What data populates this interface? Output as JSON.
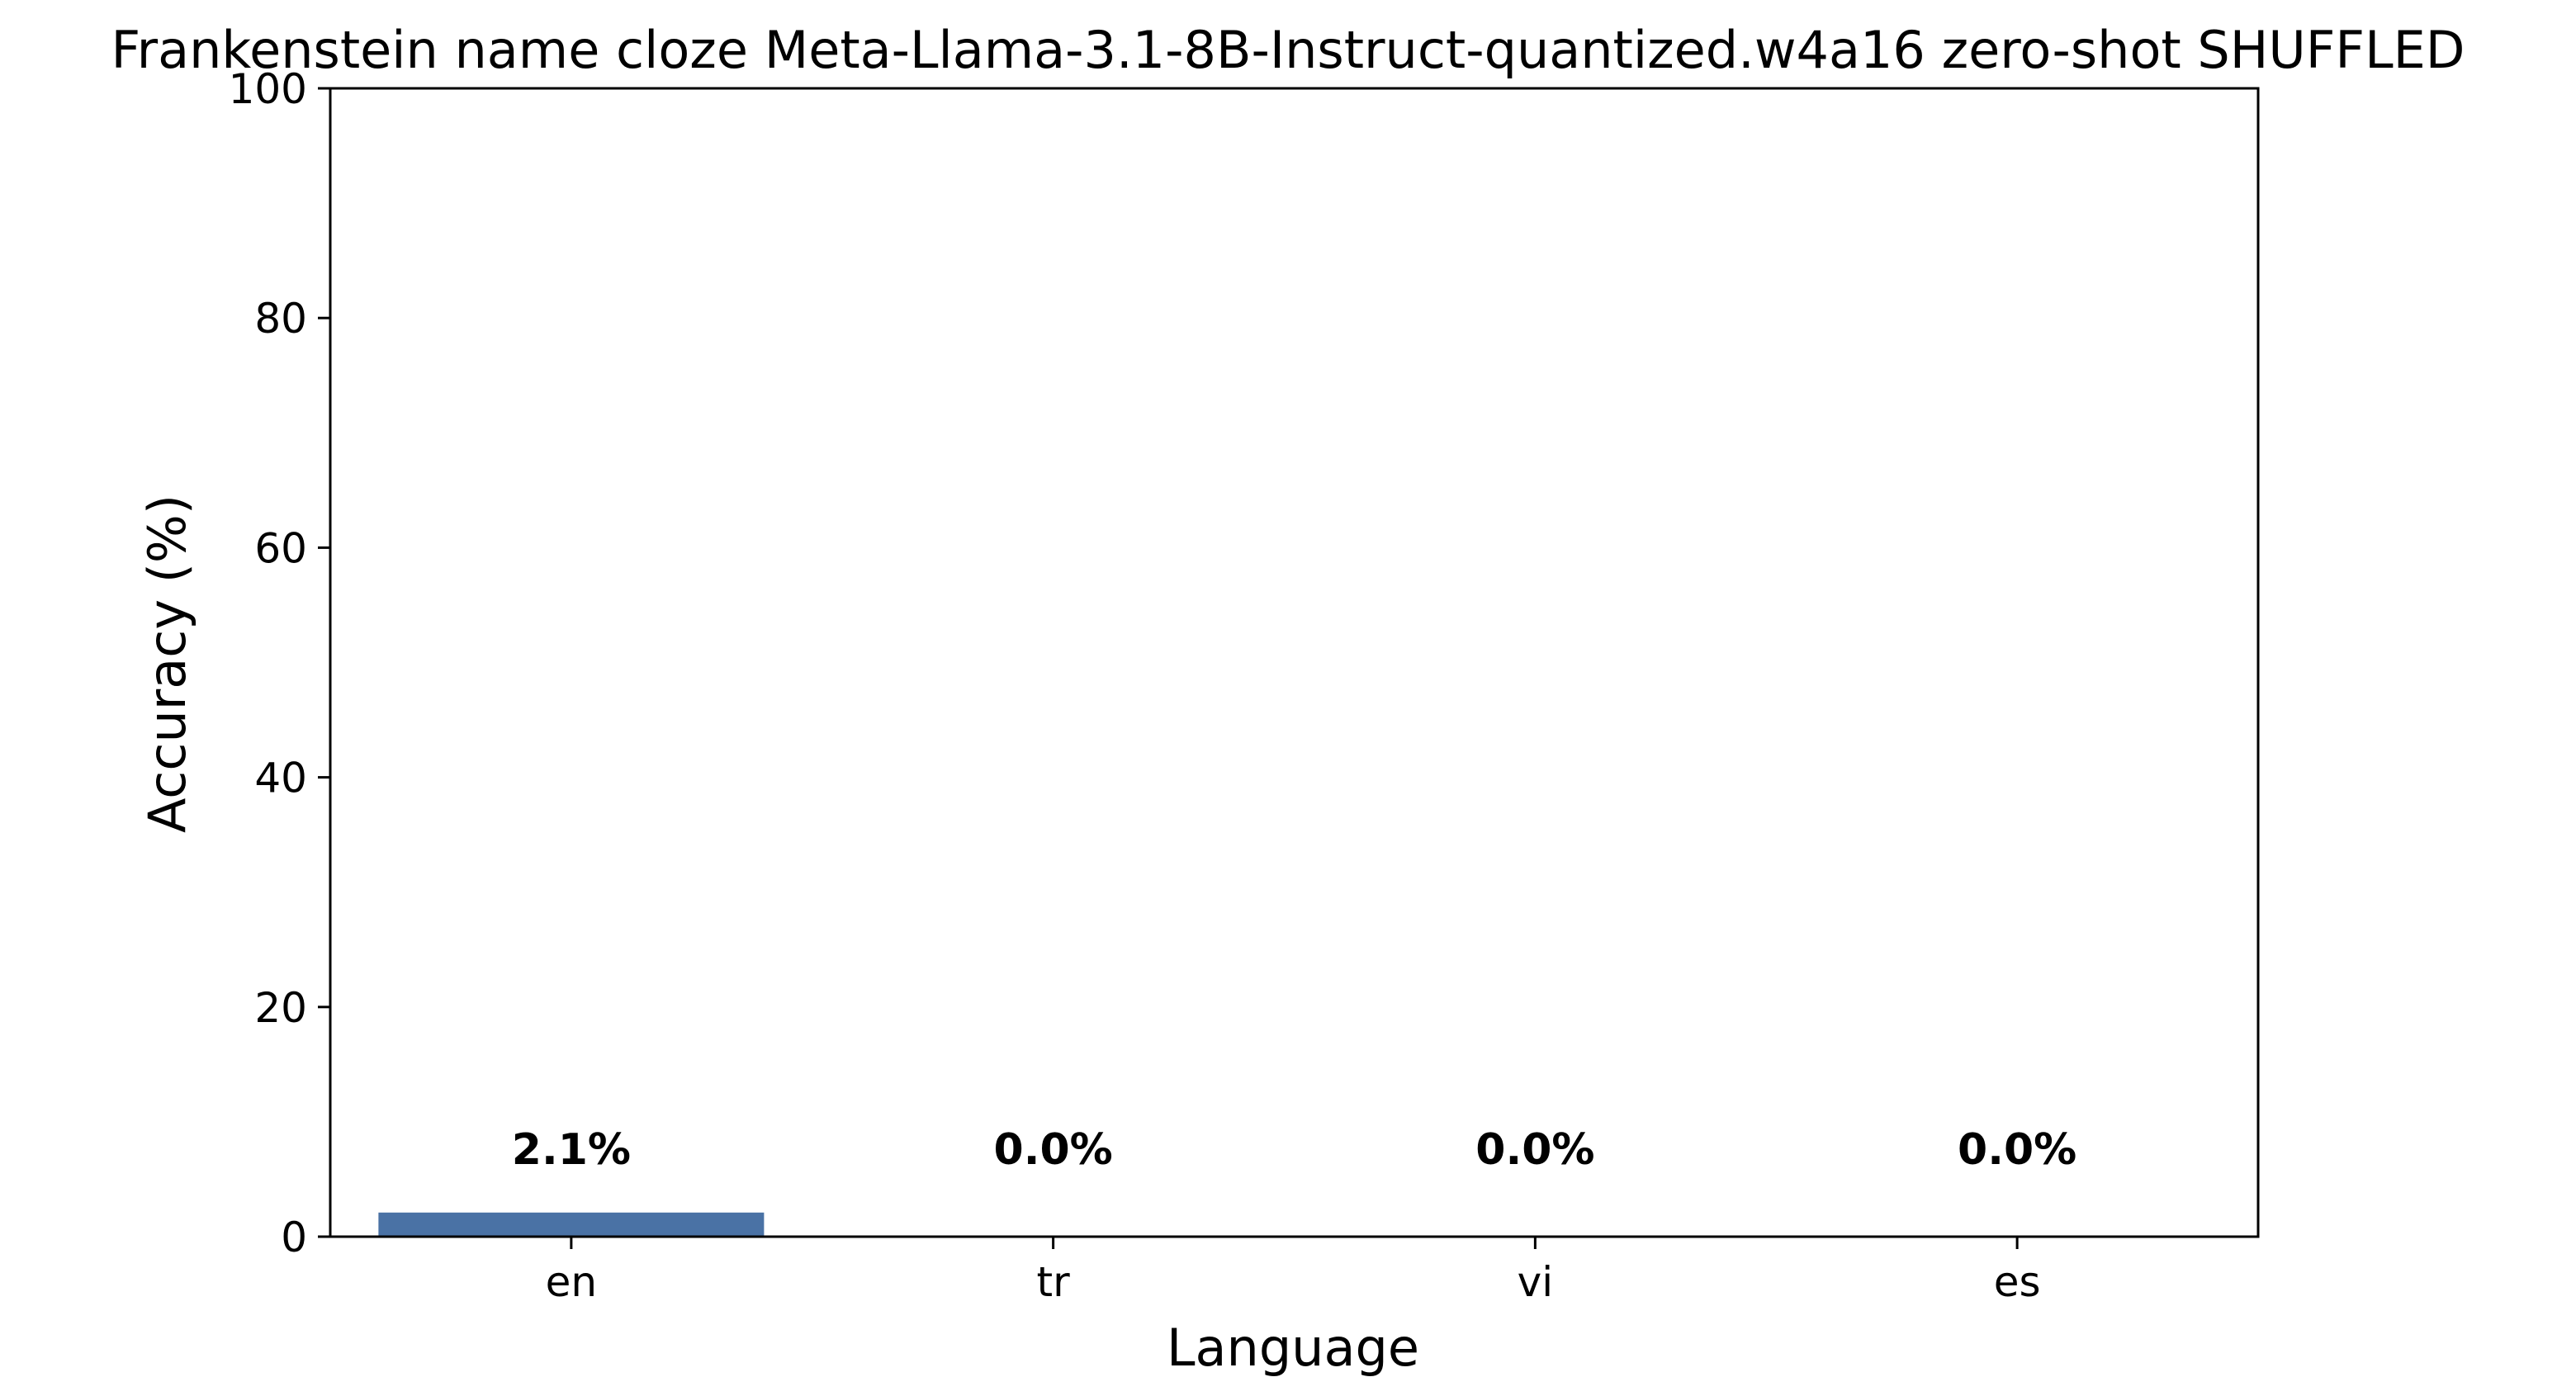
{
  "chart_data": {
    "type": "bar",
    "title": "Frankenstein name cloze Meta-Llama-3.1-8B-Instruct-quantized.w4a16 zero-shot SHUFFLED",
    "xlabel": "Language",
    "ylabel": "Accuracy (%)",
    "categories": [
      "en",
      "tr",
      "vi",
      "es"
    ],
    "values": [
      2.1,
      0.0,
      0.0,
      0.0
    ],
    "data_labels": [
      "2.1%",
      "0.0%",
      "0.0%",
      "0.0%"
    ],
    "ylim": [
      0,
      100
    ],
    "yticks": [
      0,
      20,
      40,
      60,
      80,
      100
    ],
    "ytick_labels": [
      "0",
      "20",
      "40",
      "60",
      "80",
      "100"
    ],
    "bar_color": "#4a72a5",
    "grid": false,
    "legend": "none"
  }
}
